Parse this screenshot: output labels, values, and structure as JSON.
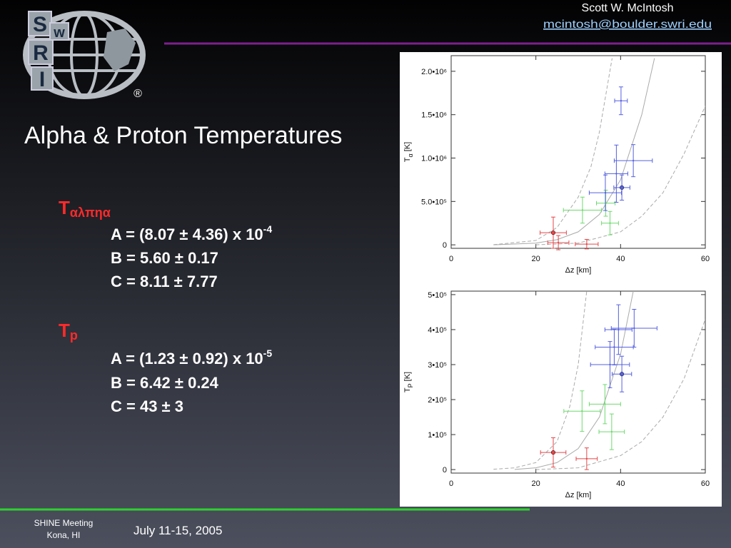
{
  "logo": {
    "letters": [
      "S",
      "w",
      "R",
      "I"
    ],
    "registered": "®"
  },
  "header": {
    "author": "Scott W. McIntosh",
    "email": "mcintosh@boulder.swri.edu"
  },
  "title": "Alpha & Proton Temperatures",
  "alpha": {
    "symbol": "T",
    "subscript": "αλπηα",
    "A": {
      "text": "A = (8.07 ± 4.36) x 10",
      "exponent": "-4"
    },
    "B": "B = 5.60 ± 0.17",
    "C": "C = 8.11 ± 7.77"
  },
  "proton": {
    "symbol": "T",
    "subscript": "p",
    "A": {
      "text": "A = (1.23 ± 0.92) x 10",
      "exponent": "-5"
    },
    "B": "B = 6.42 ± 0.24",
    "C": "C = 43 ± 3"
  },
  "footer": {
    "meeting": "SHINE Meeting",
    "place": "Kona, HI",
    "date": "July 11-15, 2005"
  },
  "chart_data": [
    {
      "type": "errorbar",
      "xlabel": "Δz [km]",
      "ylabel": {
        "main": "T",
        "sub": "α",
        "unit": " [K]"
      },
      "xlim": [
        0,
        60
      ],
      "xticks": [
        0,
        20,
        40,
        60
      ],
      "ylim": [
        -40000,
        2180000
      ],
      "yticks": [
        0,
        {
          "value": 500000,
          "label": "5.0•10⁵"
        },
        {
          "value": 1000000,
          "label": "1.0•10⁶"
        },
        {
          "value": 1500000,
          "label": "1.5•10⁶"
        },
        {
          "value": 2000000,
          "label": "2.0•10⁶"
        }
      ],
      "series": [
        {
          "color": "#e5474a",
          "x": [
            24.1,
            25.3,
            32.0
          ],
          "y": [
            140000,
            25000,
            8000
          ],
          "xerr": [
            3.1,
            2.5,
            2.7
          ],
          "yerr": [
            180000,
            82000,
            55000
          ],
          "filled": [
            0
          ]
        },
        {
          "color": "#6fd96f",
          "x": [
            31.0,
            37.5,
            36.5
          ],
          "y": [
            400000,
            250000,
            480000
          ],
          "xerr": [
            4.5,
            2.0,
            2.2
          ],
          "yerr": [
            150000,
            135000,
            150000
          ],
          "filled": []
        },
        {
          "color": "#5560e0",
          "x": [
            40.1,
            43.0,
            40.3,
            39.0,
            36.4
          ],
          "y": [
            1660000,
            970000,
            660000,
            820000,
            600000
          ],
          "xerr": [
            1.5,
            4.5,
            1.9,
            2.7,
            3.8
          ],
          "yerr": [
            160000,
            185000,
            145000,
            330000,
            205000
          ],
          "filled": [
            2
          ]
        }
      ],
      "curves": [
        {
          "style": "solid",
          "color": "#aaaaaa",
          "x": [
            10,
            20,
            25,
            30,
            35,
            40,
            45,
            48
          ],
          "y": [
            0,
            20000,
            60000,
            150000,
            350000,
            750000,
            1500000,
            2150000
          ]
        },
        {
          "style": "dashed",
          "color": "#aaaaaa",
          "x": [
            10,
            20,
            25,
            30,
            33,
            35,
            38
          ],
          "y": [
            2000,
            50000,
            200000,
            550000,
            900000,
            1300000,
            2150000
          ]
        },
        {
          "style": "dashed",
          "color": "#aaaaaa",
          "x": [
            20,
            30,
            40,
            45,
            50,
            55,
            60
          ],
          "y": [
            0,
            20000,
            150000,
            330000,
            600000,
            1050000,
            1600000
          ]
        }
      ]
    },
    {
      "type": "errorbar",
      "xlabel": "Δz [km]",
      "ylabel": {
        "main": "T",
        "sub": "P",
        "unit": " [K]"
      },
      "xlim": [
        0,
        60
      ],
      "xticks": [
        0,
        20,
        40,
        60
      ],
      "ylim": [
        -10000,
        510000
      ],
      "yticks": [
        0,
        {
          "value": 100000,
          "label": "1•10⁵"
        },
        {
          "value": 200000,
          "label": "2•10⁵"
        },
        {
          "value": 300000,
          "label": "3•10⁵"
        },
        {
          "value": 400000,
          "label": "4•10⁵"
        },
        {
          "value": 500000,
          "label": "5•10⁵"
        }
      ],
      "series": [
        {
          "color": "#e5474a",
          "x": [
            24.1,
            32.0
          ],
          "y": [
            49000,
            31000
          ],
          "xerr": [
            3.0,
            2.5
          ],
          "yerr": [
            42000,
            31000
          ],
          "filled": [
            0
          ]
        },
        {
          "color": "#6fd96f",
          "x": [
            30.9,
            37.9,
            36.3
          ],
          "y": [
            167000,
            108000,
            187000
          ],
          "xerr": [
            4.3,
            3.0,
            3.7
          ],
          "yerr": [
            58000,
            51000,
            56000
          ],
          "filled": []
        },
        {
          "color": "#5560e0",
          "x": [
            40.3,
            43.2,
            39.5,
            37.5,
            38.5
          ],
          "y": [
            273000,
            404000,
            400000,
            300000,
            350000
          ],
          "xerr": [
            2.3,
            5.4,
            3.2,
            4.6,
            4.5
          ],
          "yerr": [
            51000,
            54000,
            71000,
            66000,
            51000
          ],
          "filled": [
            0
          ]
        }
      ],
      "curves": [
        {
          "style": "solid",
          "color": "#aaaaaa",
          "x": [
            15,
            20,
            25,
            30,
            35,
            40,
            43
          ],
          "y": [
            500,
            5000,
            20000,
            60000,
            150000,
            330000,
            510000
          ]
        },
        {
          "style": "dashed",
          "color": "#aaaaaa",
          "x": [
            10,
            15,
            20,
            25,
            28,
            30,
            32
          ],
          "y": [
            1000,
            5000,
            20000,
            80000,
            180000,
            300000,
            510000
          ]
        },
        {
          "style": "dashed",
          "color": "#aaaaaa",
          "x": [
            20,
            30,
            40,
            45,
            50,
            55,
            60
          ],
          "y": [
            0,
            5000,
            40000,
            80000,
            150000,
            260000,
            430000
          ]
        }
      ]
    }
  ]
}
